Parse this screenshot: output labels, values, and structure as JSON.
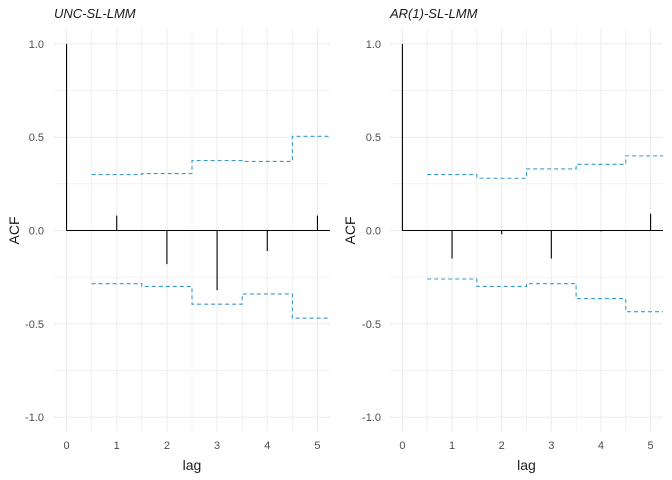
{
  "chart_data": [
    {
      "type": "bar",
      "title": "UNC-SL-LMM",
      "xlabel": "lag",
      "ylabel": "ACF",
      "x": [
        0,
        1,
        2,
        3,
        4,
        5
      ],
      "acf": [
        1.0,
        0.08,
        -0.18,
        -0.32,
        -0.11,
        0.08
      ],
      "ci_upper": [
        {
          "from": 0.5,
          "to": 1.5,
          "value": 0.3
        },
        {
          "from": 1.5,
          "to": 2.5,
          "value": 0.305
        },
        {
          "from": 2.5,
          "to": 3.5,
          "value": 0.375
        },
        {
          "from": 3.5,
          "to": 4.5,
          "value": 0.37
        },
        {
          "from": 4.5,
          "to": 5.25,
          "value": 0.505
        }
      ],
      "ci_lower": [
        {
          "from": 0.5,
          "to": 1.5,
          "value": -0.285
        },
        {
          "from": 1.5,
          "to": 2.5,
          "value": -0.3
        },
        {
          "from": 2.5,
          "to": 3.5,
          "value": -0.395
        },
        {
          "from": 3.5,
          "to": 4.5,
          "value": -0.34
        },
        {
          "from": 4.5,
          "to": 5.25,
          "value": -0.47
        }
      ],
      "xticks": [
        "0",
        "1",
        "2",
        "3",
        "4",
        "5"
      ],
      "yticks": [
        "-1.0",
        "-0.5",
        "0.0",
        "0.5",
        "1.0"
      ],
      "xlim": [
        -0.25,
        5.25
      ],
      "ylim": [
        -1.08,
        1.08
      ],
      "grid": true,
      "colors": {
        "bar": "#000000",
        "ci": "#3a9ad0",
        "grid": "#ebebeb"
      }
    },
    {
      "type": "bar",
      "title": "AR(1)-SL-LMM",
      "xlabel": "lag",
      "ylabel": "ACF",
      "x": [
        0,
        1,
        2,
        3,
        4,
        5
      ],
      "acf": [
        1.0,
        -0.15,
        -0.02,
        -0.15,
        -0.005,
        0.09
      ],
      "ci_upper": [
        {
          "from": 0.5,
          "to": 1.5,
          "value": 0.3
        },
        {
          "from": 1.5,
          "to": 2.5,
          "value": 0.28
        },
        {
          "from": 2.5,
          "to": 3.5,
          "value": 0.33
        },
        {
          "from": 3.5,
          "to": 4.5,
          "value": 0.355
        },
        {
          "from": 4.5,
          "to": 5.25,
          "value": 0.4
        }
      ],
      "ci_lower": [
        {
          "from": 0.5,
          "to": 1.5,
          "value": -0.26
        },
        {
          "from": 1.5,
          "to": 2.5,
          "value": -0.3
        },
        {
          "from": 2.5,
          "to": 3.5,
          "value": -0.285
        },
        {
          "from": 3.5,
          "to": 4.5,
          "value": -0.365
        },
        {
          "from": 4.5,
          "to": 5.25,
          "value": -0.435
        }
      ],
      "xticks": [
        "0",
        "1",
        "2",
        "3",
        "4",
        "5"
      ],
      "yticks": [
        "-1.0",
        "-0.5",
        "0.0",
        "0.5",
        "1.0"
      ],
      "xlim": [
        -0.25,
        5.25
      ],
      "ylim": [
        -1.08,
        1.08
      ],
      "grid": true,
      "colors": {
        "bar": "#000000",
        "ci": "#3a9ad0",
        "grid": "#ebebeb"
      }
    }
  ]
}
